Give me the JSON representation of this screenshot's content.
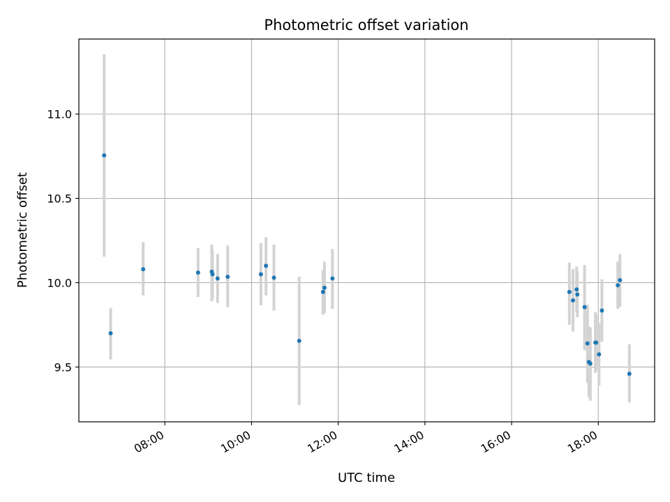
{
  "chart_data": {
    "type": "scatter",
    "title": "Photometric offset variation",
    "xlabel": "UTC time",
    "ylabel": "Photometric offset",
    "x_ticks": [
      "08:00",
      "10:00",
      "12:00",
      "14:00",
      "16:00",
      "18:00"
    ],
    "y_ticks": [
      "9.5",
      "10.0",
      "10.5",
      "11.0"
    ],
    "xlim": [
      "06:01",
      "19:18"
    ],
    "ylim": [
      9.175,
      11.445
    ],
    "grid": true,
    "colors": {
      "marker": "#1f77b4",
      "errorbar": "#d3d3d3",
      "grid": "#b0b0b0"
    },
    "points": [
      {
        "x": "06:36",
        "y": 10.755,
        "lo": 10.155,
        "hi": 11.355
      },
      {
        "x": "06:45",
        "y": 9.7,
        "lo": 9.545,
        "hi": 9.85
      },
      {
        "x": "07:30",
        "y": 10.08,
        "lo": 9.925,
        "hi": 10.24
      },
      {
        "x": "08:46",
        "y": 10.06,
        "lo": 9.915,
        "hi": 10.205
      },
      {
        "x": "09:05",
        "y": 10.065,
        "lo": 9.89,
        "hi": 10.225
      },
      {
        "x": "09:06",
        "y": 10.05,
        "lo": 9.905,
        "hi": 10.19
      },
      {
        "x": "09:13",
        "y": 10.025,
        "lo": 9.88,
        "hi": 10.17
      },
      {
        "x": "09:27",
        "y": 10.035,
        "lo": 9.855,
        "hi": 10.22
      },
      {
        "x": "10:13",
        "y": 10.05,
        "lo": 9.865,
        "hi": 10.235
      },
      {
        "x": "10:20",
        "y": 10.1,
        "lo": 9.925,
        "hi": 10.27
      },
      {
        "x": "10:31",
        "y": 10.03,
        "lo": 9.835,
        "hi": 10.225
      },
      {
        "x": "11:06",
        "y": 9.655,
        "lo": 9.275,
        "hi": 10.035
      },
      {
        "x": "11:39",
        "y": 9.945,
        "lo": 9.81,
        "hi": 10.075
      },
      {
        "x": "11:41",
        "y": 9.97,
        "lo": 9.82,
        "hi": 10.125
      },
      {
        "x": "11:52",
        "y": 10.025,
        "lo": 9.845,
        "hi": 10.2
      },
      {
        "x": "17:20",
        "y": 9.945,
        "lo": 9.75,
        "hi": 10.12
      },
      {
        "x": "17:25",
        "y": 9.895,
        "lo": 9.71,
        "hi": 10.08
      },
      {
        "x": "17:30",
        "y": 9.96,
        "lo": 9.83,
        "hi": 10.095
      },
      {
        "x": "17:31",
        "y": 9.93,
        "lo": 9.795,
        "hi": 10.065
      },
      {
        "x": "17:41",
        "y": 9.855,
        "lo": 9.6,
        "hi": 10.105
      },
      {
        "x": "17:45",
        "y": 9.64,
        "lo": 9.405,
        "hi": 9.87
      },
      {
        "x": "17:47",
        "y": 9.53,
        "lo": 9.32,
        "hi": 9.74
      },
      {
        "x": "17:49",
        "y": 9.52,
        "lo": 9.3,
        "hi": 9.735
      },
      {
        "x": "17:56",
        "y": 9.645,
        "lo": 9.465,
        "hi": 9.825
      },
      {
        "x": "17:57",
        "y": 9.645,
        "lo": 9.48,
        "hi": 9.81
      },
      {
        "x": "18:01",
        "y": 9.575,
        "lo": 9.39,
        "hi": 9.76
      },
      {
        "x": "18:05",
        "y": 9.835,
        "lo": 9.65,
        "hi": 10.02
      },
      {
        "x": "18:27",
        "y": 9.985,
        "lo": 9.845,
        "hi": 10.125
      },
      {
        "x": "18:30",
        "y": 10.015,
        "lo": 9.855,
        "hi": 10.17
      },
      {
        "x": "18:43",
        "y": 9.46,
        "lo": 9.29,
        "hi": 9.635
      }
    ]
  }
}
